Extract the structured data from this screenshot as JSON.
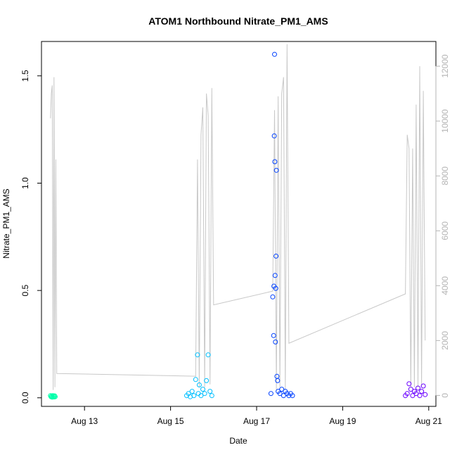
{
  "chart_data": {
    "type": "scatter",
    "title": "ATOM1 Northbound Nitrate_PM1_AMS",
    "xlabel": "Date",
    "ylabel": "Nitrate_PM1_AMS",
    "x_ticks": [
      "Aug 13",
      "Aug 15",
      "Aug 17",
      "Aug 19",
      "Aug 21"
    ],
    "y_ticks": [
      "0.0",
      "0.5",
      "1.0",
      "1.5"
    ],
    "y2_ticks": [
      "0",
      "2000",
      "4000",
      "6000",
      "8000",
      "10000",
      "12000"
    ],
    "xlim": [
      "2016-08-12T00:00",
      "2016-08-21T04:00"
    ],
    "ylim": [
      -0.04,
      1.66
    ],
    "y2lim": [
      -400,
      12900
    ],
    "grid": false,
    "colors": {
      "leg1": "#00FFAA",
      "leg2": "#00BFFF",
      "leg3": "#0040FF",
      "leg4": "#6A00FF",
      "altitude_line": "#C8C8C8",
      "axis": "#000000",
      "right_axis": "#B4B4B4"
    },
    "series": [
      {
        "color": "#00FFAA",
        "x": [
          "2016-08-12T05:00",
          "2016-08-12T05:20",
          "2016-08-12T05:40",
          "2016-08-12T06:00",
          "2016-08-12T06:20",
          "2016-08-12T06:40",
          "2016-08-12T07:00",
          "2016-08-12T07:20",
          "2016-08-12T07:40"
        ],
        "y": [
          0.01,
          0.005,
          0.008,
          0.003,
          0.01,
          0.006,
          0.004,
          0.009,
          0.005
        ]
      },
      {
        "color": "#00BFFF",
        "x": [
          "2016-08-15T09:00",
          "2016-08-15T10:00",
          "2016-08-15T11:00",
          "2016-08-15T12:00",
          "2016-08-15T13:00",
          "2016-08-15T14:00",
          "2016-08-15T15:00",
          "2016-08-15T15:30",
          "2016-08-15T16:00",
          "2016-08-15T17:00",
          "2016-08-15T18:00",
          "2016-08-15T19:00",
          "2016-08-15T20:00",
          "2016-08-15T21:00",
          "2016-08-15T22:00",
          "2016-08-15T23:00"
        ],
        "y": [
          0.01,
          0.02,
          0.005,
          0.03,
          0.01,
          0.085,
          0.2,
          0.02,
          0.06,
          0.01,
          0.04,
          0.02,
          0.08,
          0.2,
          0.03,
          0.01
        ]
      },
      {
        "color": "#0040FF",
        "x": [
          "2016-08-17T08:00",
          "2016-08-17T09:00",
          "2016-08-17T09:30",
          "2016-08-17T09:40",
          "2016-08-17T09:50",
          "2016-08-17T10:00",
          "2016-08-17T10:10",
          "2016-08-17T10:20",
          "2016-08-17T10:30",
          "2016-08-17T10:40",
          "2016-08-17T10:50",
          "2016-08-17T11:00",
          "2016-08-17T11:20",
          "2016-08-17T11:40",
          "2016-08-17T12:00",
          "2016-08-17T13:00",
          "2016-08-17T14:00",
          "2016-08-17T15:00",
          "2016-08-17T16:00",
          "2016-08-17T17:00",
          "2016-08-17T18:00",
          "2016-08-17T19:00",
          "2016-08-17T20:00"
        ],
        "y": [
          0.02,
          0.47,
          0.29,
          0.52,
          1.22,
          1.6,
          1.1,
          0.57,
          0.26,
          0.51,
          0.66,
          1.06,
          0.1,
          0.08,
          0.03,
          0.02,
          0.04,
          0.01,
          0.03,
          0.02,
          0.01,
          0.02,
          0.01
        ]
      },
      {
        "color": "#6A00FF",
        "x": [
          "2016-08-20T11:00",
          "2016-08-20T12:00",
          "2016-08-20T13:00",
          "2016-08-20T14:00",
          "2016-08-20T15:00",
          "2016-08-20T16:00",
          "2016-08-20T17:00",
          "2016-08-20T18:00",
          "2016-08-20T19:00",
          "2016-08-20T20:00",
          "2016-08-20T21:00",
          "2016-08-20T22:00"
        ],
        "y": [
          0.01,
          0.02,
          0.065,
          0.04,
          0.01,
          0.03,
          0.02,
          0.045,
          0.01,
          0.03,
          0.055,
          0.015
        ]
      }
    ],
    "altitude": {
      "x": [
        "2016-08-12T05:00",
        "2016-08-12T05:30",
        "2016-08-12T06:00",
        "2016-08-12T06:30",
        "2016-08-12T07:00",
        "2016-08-12T07:30",
        "2016-08-12T08:00",
        "2016-08-12T08:30",
        "2016-08-15T14:00",
        "2016-08-15T15:00",
        "2016-08-15T16:00",
        "2016-08-15T17:00",
        "2016-08-15T18:00",
        "2016-08-15T19:00",
        "2016-08-15T20:00",
        "2016-08-15T21:00",
        "2016-08-15T22:00",
        "2016-08-15T23:00",
        "2016-08-16T00:00",
        "2016-08-17T09:00",
        "2016-08-17T10:00",
        "2016-08-17T11:00",
        "2016-08-17T12:00",
        "2016-08-17T13:00",
        "2016-08-17T14:00",
        "2016-08-17T15:00",
        "2016-08-17T16:00",
        "2016-08-17T17:00",
        "2016-08-17T18:00",
        "2016-08-20T11:00",
        "2016-08-20T12:00",
        "2016-08-20T13:00",
        "2016-08-20T14:00",
        "2016-08-20T15:00",
        "2016-08-20T16:00",
        "2016-08-20T17:00",
        "2016-08-20T18:00",
        "2016-08-20T19:00",
        "2016-08-20T20:00",
        "2016-08-20T21:00",
        "2016-08-20T22:00"
      ],
      "y": [
        10100,
        11000,
        11300,
        200,
        11600,
        300,
        8600,
        800,
        700,
        8600,
        300,
        9500,
        10500,
        300,
        11000,
        10200,
        400,
        11200,
        3300,
        3800,
        10400,
        200,
        10900,
        300,
        11000,
        11600,
        200,
        12800,
        1900,
        3700,
        9500,
        9000,
        300,
        9000,
        300,
        10600,
        300,
        12000,
        300,
        11100,
        2000
      ]
    }
  }
}
